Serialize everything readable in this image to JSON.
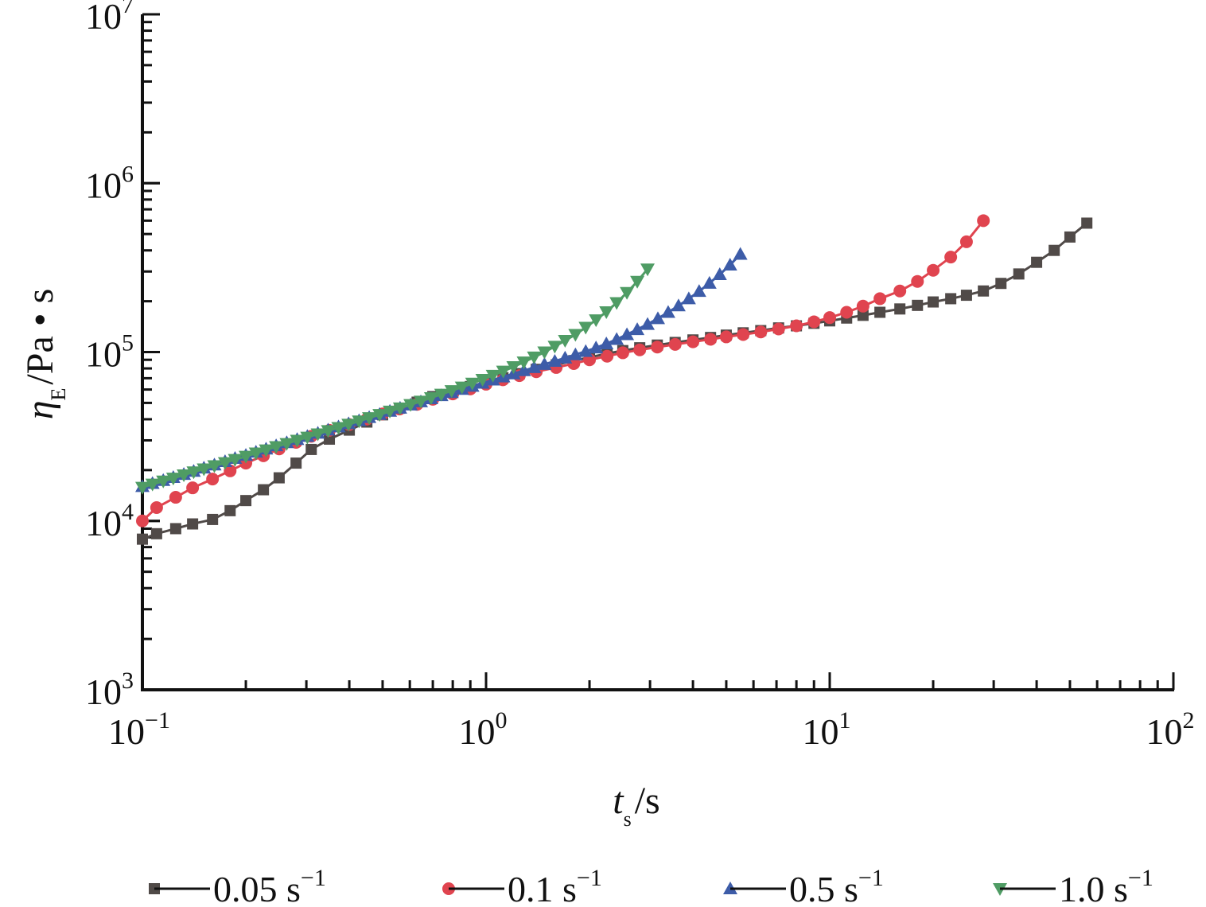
{
  "chart_data": {
    "type": "line",
    "x_scale": "log",
    "y_scale": "log",
    "xlim": [
      0.1,
      100
    ],
    "ylim": [
      1000,
      10000000
    ],
    "xlabel": {
      "symbol": "t",
      "subscript": "s",
      "unit": "/s"
    },
    "ylabel": {
      "symbol": "η",
      "subscript": "E",
      "unit": "/Pa • s"
    },
    "x_ticks": [
      {
        "base": "10",
        "exp": "−1",
        "value": 0.1
      },
      {
        "base": "10",
        "exp": "0",
        "value": 1
      },
      {
        "base": "10",
        "exp": "1",
        "value": 10
      },
      {
        "base": "10",
        "exp": "2",
        "value": 100
      }
    ],
    "y_ticks": [
      {
        "base": "10",
        "exp": "3",
        "value": 1000
      },
      {
        "base": "10",
        "exp": "4",
        "value": 10000
      },
      {
        "base": "10",
        "exp": "5",
        "value": 100000
      },
      {
        "base": "10",
        "exp": "6",
        "value": 1000000
      },
      {
        "base": "10",
        "exp": "7",
        "value": 10000000
      }
    ],
    "grid": false,
    "legend_position": "bottom",
    "series": [
      {
        "name": "0.05 s",
        "name_exp": "−1",
        "color": "#504a48",
        "marker": "square",
        "x": [
          0.1,
          0.11,
          0.125,
          0.14,
          0.16,
          0.18,
          0.2,
          0.225,
          0.25,
          0.28,
          0.31,
          0.35,
          0.4,
          0.45,
          0.5,
          0.56,
          0.63,
          0.7,
          0.8,
          0.9,
          1.0,
          1.12,
          1.25,
          1.4,
          1.6,
          1.8,
          2.0,
          2.25,
          2.5,
          2.8,
          3.15,
          3.55,
          4.0,
          4.5,
          5.0,
          5.6,
          6.3,
          7.1,
          8.0,
          9.0,
          10,
          11.2,
          12.5,
          14,
          16,
          18,
          20,
          22.5,
          25,
          28,
          31.5,
          35.5,
          40,
          45,
          50,
          56
        ],
        "y": [
          7800,
          8400,
          9000,
          9600,
          10200,
          11500,
          13200,
          15300,
          18000,
          22000,
          26500,
          30500,
          34500,
          38500,
          42500,
          46500,
          50500,
          54500,
          58500,
          62500,
          66500,
          70500,
          74500,
          79000,
          84000,
          89000,
          93000,
          98000,
          102000,
          106000,
          110000,
          114000,
          118000,
          122000,
          126000,
          130000,
          134000,
          139000,
          143000,
          148000,
          153000,
          159000,
          165000,
          172000,
          180000,
          189000,
          198000,
          207000,
          217000,
          230000,
          255000,
          290000,
          340000,
          400000,
          480000,
          580000
        ]
      },
      {
        "name": "0.1 s",
        "name_exp": "−1",
        "color": "#e0444f",
        "marker": "circle",
        "x": [
          0.1,
          0.11,
          0.125,
          0.14,
          0.16,
          0.18,
          0.2,
          0.225,
          0.25,
          0.28,
          0.31,
          0.35,
          0.4,
          0.45,
          0.5,
          0.56,
          0.63,
          0.7,
          0.8,
          0.9,
          1.0,
          1.12,
          1.25,
          1.4,
          1.6,
          1.8,
          2.0,
          2.25,
          2.5,
          2.8,
          3.15,
          3.55,
          4.0,
          4.5,
          5.0,
          5.6,
          6.3,
          7.1,
          8.0,
          9.0,
          10,
          11.2,
          12.5,
          14,
          16,
          18,
          20,
          22.5,
          25,
          28
        ],
        "y": [
          10000,
          12000,
          13800,
          15700,
          17700,
          19800,
          22000,
          24300,
          26700,
          29200,
          31700,
          34400,
          37200,
          40100,
          43000,
          46000,
          49000,
          52500,
          56500,
          60500,
          64500,
          68500,
          72500,
          76500,
          81000,
          85500,
          90000,
          94500,
          99000,
          103000,
          107000,
          111000,
          115000,
          119000,
          123000,
          127000,
          131500,
          137000,
          143000,
          151000,
          160000,
          172000,
          187000,
          207000,
          230000,
          262000,
          305000,
          365000,
          450000,
          600000
        ]
      },
      {
        "name": "0.5 s",
        "name_exp": "−1",
        "color": "#3d5ca8",
        "marker": "triangle-up",
        "x": [
          0.1,
          0.107,
          0.115,
          0.123,
          0.132,
          0.141,
          0.151,
          0.162,
          0.174,
          0.186,
          0.2,
          0.214,
          0.229,
          0.245,
          0.263,
          0.282,
          0.302,
          0.324,
          0.347,
          0.372,
          0.398,
          0.427,
          0.457,
          0.49,
          0.525,
          0.562,
          0.603,
          0.646,
          0.692,
          0.741,
          0.794,
          0.851,
          0.912,
          0.977,
          1.047,
          1.122,
          1.202,
          1.288,
          1.38,
          1.479,
          1.585,
          1.698,
          1.82,
          1.95,
          2.089,
          2.239,
          2.399,
          2.57,
          2.754,
          2.951,
          3.162,
          3.388,
          3.631,
          3.89,
          4.169,
          4.467,
          4.786,
          5.129,
          5.495
        ],
        "y": [
          16000,
          16700,
          17400,
          18100,
          18900,
          19700,
          20600,
          21500,
          22500,
          23500,
          24500,
          25600,
          26700,
          27900,
          29100,
          30400,
          31700,
          33100,
          34600,
          36100,
          37700,
          39300,
          41000,
          42800,
          44700,
          46600,
          48700,
          50800,
          53000,
          55300,
          57700,
          60200,
          62800,
          65500,
          68400,
          71300,
          74400,
          77700,
          81000,
          84600,
          88300,
          92300,
          96500,
          101000,
          106000,
          112000,
          119000,
          127000,
          136000,
          146000,
          158000,
          172000,
          188000,
          207000,
          229000,
          256000,
          288000,
          328000,
          380000
        ]
      },
      {
        "name": "1.0 s",
        "name_exp": "−1",
        "color": "#4f9c64",
        "marker": "triangle-down",
        "x": [
          0.1,
          0.107,
          0.115,
          0.123,
          0.132,
          0.141,
          0.151,
          0.162,
          0.174,
          0.186,
          0.2,
          0.214,
          0.229,
          0.245,
          0.263,
          0.282,
          0.302,
          0.324,
          0.347,
          0.372,
          0.398,
          0.427,
          0.457,
          0.49,
          0.525,
          0.562,
          0.603,
          0.646,
          0.692,
          0.741,
          0.794,
          0.851,
          0.912,
          0.977,
          1.047,
          1.122,
          1.202,
          1.288,
          1.38,
          1.479,
          1.585,
          1.698,
          1.82,
          1.95,
          2.089,
          2.239,
          2.399,
          2.57,
          2.754,
          2.951
        ],
        "y": [
          15800,
          16500,
          17200,
          17900,
          18700,
          19500,
          20300,
          21200,
          22100,
          23100,
          24100,
          25200,
          26300,
          27500,
          28700,
          30000,
          31300,
          32700,
          34200,
          35700,
          37300,
          39000,
          40800,
          42600,
          44600,
          46600,
          48800,
          51100,
          53600,
          56200,
          59000,
          62000,
          65300,
          68800,
          72700,
          77000,
          81800,
          87200,
          93300,
          100000,
          108000,
          117000,
          127000,
          140000,
          155000,
          173000,
          196000,
          225000,
          262000,
          310000
        ]
      }
    ]
  }
}
